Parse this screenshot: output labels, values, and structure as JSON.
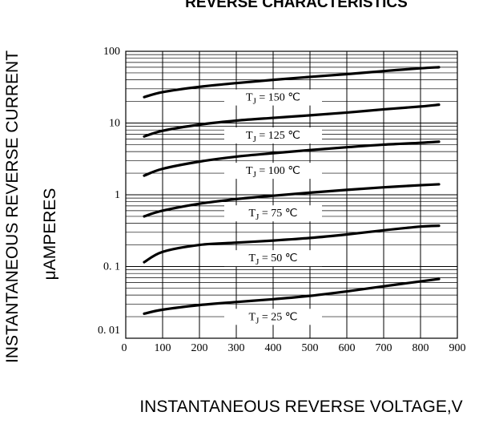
{
  "chart_data": {
    "type": "line",
    "title": "REVERSE CHARACTERISTICS",
    "xlabel": "INSTANTANEOUS REVERSE VOLTAGE,V",
    "ylabel": "INSTANTANEOUS REVERSE CURRENT",
    "ylabel_unit": "μAMPERES",
    "xlim": [
      0,
      900
    ],
    "ylim": [
      0.01,
      100
    ],
    "y_scale": "log",
    "x_ticks": [
      0,
      100,
      200,
      300,
      400,
      500,
      600,
      700,
      800,
      900
    ],
    "x_tick_labels": [
      "0",
      "100",
      "200",
      "300",
      "400",
      "500",
      "600",
      "700",
      "800",
      "900"
    ],
    "y_ticks": [
      0.01,
      0.1,
      1,
      10,
      100
    ],
    "y_tick_labels": [
      "0. 01",
      "0. 1",
      "1",
      "10",
      "100"
    ],
    "grid": true,
    "series": [
      {
        "name": "T J = 150 °C",
        "label_sub": "J",
        "label_rest": " = 150 ℃",
        "x": [
          50,
          100,
          200,
          300,
          400,
          500,
          600,
          700,
          800,
          850
        ],
        "y": [
          23,
          27,
          32,
          36,
          40,
          44,
          48,
          53,
          58,
          60
        ]
      },
      {
        "name": "T J = 125 °C",
        "label_sub": "J",
        "label_rest": " = 125 ℃",
        "x": [
          50,
          100,
          200,
          300,
          400,
          500,
          600,
          700,
          800,
          850
        ],
        "y": [
          6.5,
          7.8,
          9.5,
          10.8,
          11.8,
          12.8,
          14.0,
          15.5,
          17.0,
          18.0
        ]
      },
      {
        "name": "T J = 100 °C",
        "label_sub": "J",
        "label_rest": " = 100 ℃",
        "x": [
          50,
          100,
          200,
          300,
          400,
          500,
          600,
          700,
          800,
          850
        ],
        "y": [
          1.85,
          2.3,
          2.9,
          3.4,
          3.8,
          4.2,
          4.6,
          5.0,
          5.3,
          5.5
        ]
      },
      {
        "name": "T J = 75 °C",
        "label_sub": "J",
        "label_rest": " = 75 ℃",
        "x": [
          50,
          100,
          200,
          300,
          400,
          500,
          600,
          700,
          800,
          850
        ],
        "y": [
          0.5,
          0.6,
          0.75,
          0.87,
          0.97,
          1.07,
          1.17,
          1.27,
          1.36,
          1.4
        ]
      },
      {
        "name": "T J = 50 °C",
        "label_sub": "J",
        "label_rest": " = 50 ℃",
        "x": [
          50,
          100,
          200,
          300,
          400,
          500,
          600,
          700,
          800,
          850
        ],
        "y": [
          0.115,
          0.16,
          0.2,
          0.215,
          0.23,
          0.25,
          0.28,
          0.32,
          0.36,
          0.37
        ]
      },
      {
        "name": "T J = 25 °C",
        "label_sub": "J",
        "label_rest": " = 25 ℃",
        "x": [
          50,
          100,
          200,
          300,
          400,
          500,
          600,
          700,
          800,
          850
        ],
        "y": [
          0.022,
          0.025,
          0.029,
          0.032,
          0.035,
          0.039,
          0.045,
          0.053,
          0.062,
          0.067
        ]
      }
    ],
    "series_label_x": [
      400,
      400,
      400,
      400,
      400,
      400
    ]
  }
}
